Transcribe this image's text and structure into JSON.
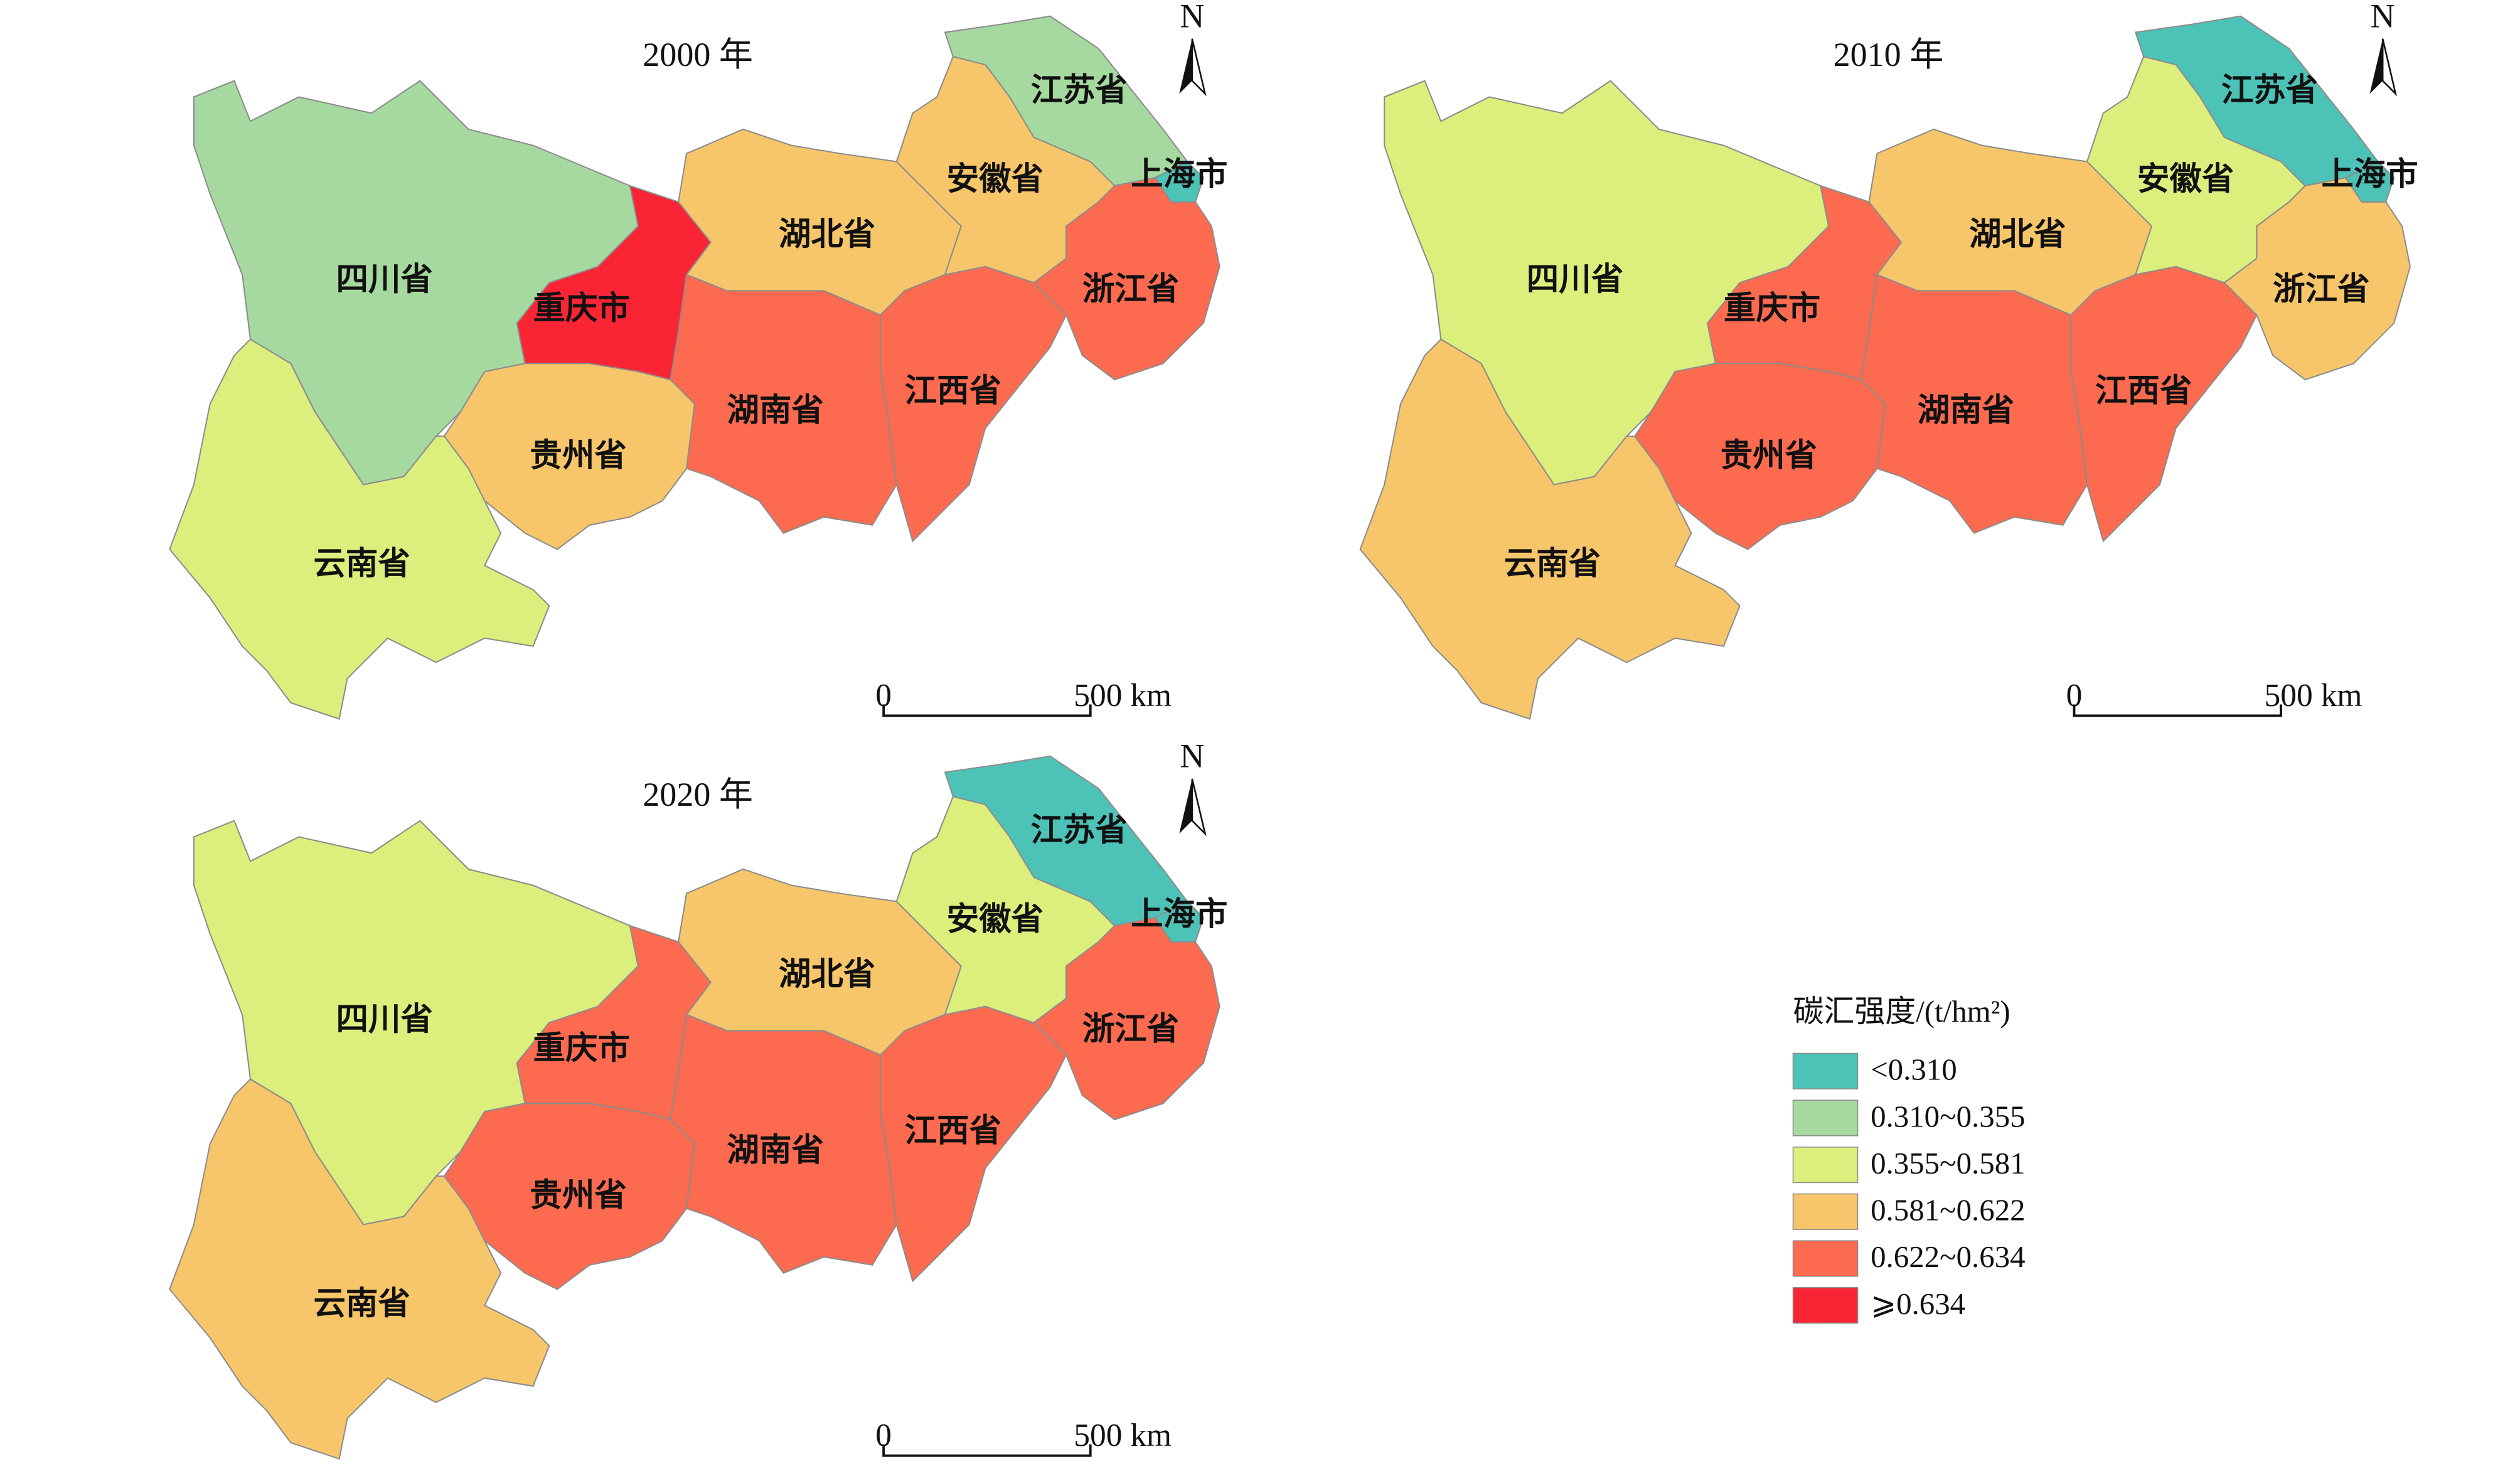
{
  "maps": [
    {
      "title": "2000 年",
      "north": "N",
      "scale_start": "0",
      "scale_end": "500 km",
      "regions": [
        {
          "name": "四川省",
          "color": "#a6d9a0"
        },
        {
          "name": "重庆市",
          "color": "#f92535"
        },
        {
          "name": "贵州省",
          "color": "#f7c66a"
        },
        {
          "name": "云南省",
          "color": "#dcee7b"
        },
        {
          "name": "湖北省",
          "color": "#f7c66a"
        },
        {
          "name": "湖南省",
          "color": "#fc6a50"
        },
        {
          "name": "江西省",
          "color": "#fc6a50"
        },
        {
          "name": "安徽省",
          "color": "#f7c66a"
        },
        {
          "name": "江苏省",
          "color": "#a6d9a0"
        },
        {
          "name": "上海市",
          "color": "#4dc3b8"
        },
        {
          "name": "浙江省",
          "color": "#fc6a50"
        }
      ]
    },
    {
      "title": "2010 年",
      "north": "N",
      "scale_start": "0",
      "scale_end": "500 km",
      "regions": [
        {
          "name": "四川省",
          "color": "#dcee7b"
        },
        {
          "name": "重庆市",
          "color": "#fc6a50"
        },
        {
          "name": "贵州省",
          "color": "#fc6a50"
        },
        {
          "name": "云南省",
          "color": "#f7c66a"
        },
        {
          "name": "湖北省",
          "color": "#f7c66a"
        },
        {
          "name": "湖南省",
          "color": "#fc6a50"
        },
        {
          "name": "江西省",
          "color": "#fc6a50"
        },
        {
          "name": "安徽省",
          "color": "#dcee7b"
        },
        {
          "name": "江苏省",
          "color": "#4dc3b8"
        },
        {
          "name": "上海市",
          "color": "#4dc3b8"
        },
        {
          "name": "浙江省",
          "color": "#f7c66a"
        }
      ]
    },
    {
      "title": "2020 年",
      "north": "N",
      "scale_start": "0",
      "scale_end": "500 km",
      "regions": [
        {
          "name": "四川省",
          "color": "#dcee7b"
        },
        {
          "name": "重庆市",
          "color": "#fc6a50"
        },
        {
          "name": "贵州省",
          "color": "#fc6a50"
        },
        {
          "name": "云南省",
          "color": "#f7c66a"
        },
        {
          "name": "湖北省",
          "color": "#f7c66a"
        },
        {
          "name": "湖南省",
          "color": "#fc6a50"
        },
        {
          "name": "江西省",
          "color": "#fc6a50"
        },
        {
          "name": "安徽省",
          "color": "#dcee7b"
        },
        {
          "name": "江苏省",
          "color": "#4dc3b8"
        },
        {
          "name": "上海市",
          "color": "#4dc3b8"
        },
        {
          "name": "浙江省",
          "color": "#fc6a50"
        }
      ]
    }
  ],
  "legend": {
    "title": "碳汇强度/(t/hm²)",
    "items": [
      {
        "label": "<0.310",
        "color": "#4dc3b8"
      },
      {
        "label": "0.310~0.355",
        "color": "#a6d9a0"
      },
      {
        "label": "0.355~0.581",
        "color": "#dcee7b"
      },
      {
        "label": "0.581~0.622",
        "color": "#f7c66a"
      },
      {
        "label": "0.622~0.634",
        "color": "#fc6a50"
      },
      {
        "label": "⩾0.634",
        "color": "#f92535"
      }
    ]
  }
}
